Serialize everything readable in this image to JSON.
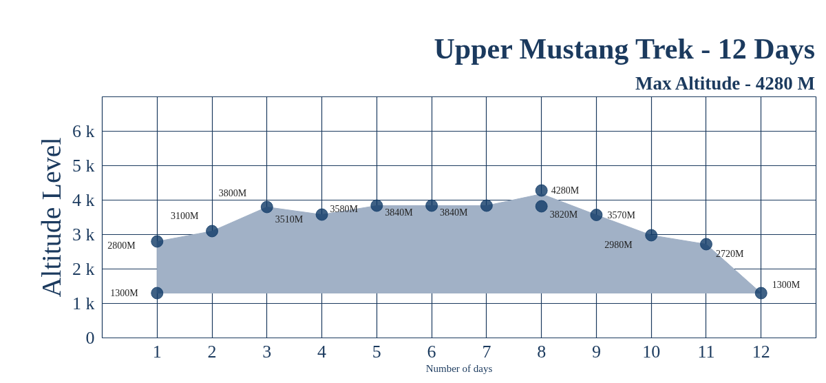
{
  "chart_data": {
    "type": "area",
    "title": "Upper Mustang Trek - 12 Days",
    "subtitle": "Max Altitude - 4280 M",
    "xlabel": "Number of days",
    "ylabel": "Altitude Level",
    "xlim": [
      0,
      13
    ],
    "xticks": [
      {
        "value": 0,
        "label": null
      },
      1,
      2,
      3,
      4,
      5,
      6,
      7,
      8,
      9,
      10,
      11,
      12,
      {
        "value": 13,
        "label": null
      }
    ],
    "ylim": [
      0,
      7000
    ],
    "yticks": [
      {
        "value": 0,
        "label": "0"
      },
      {
        "value": 1000,
        "label": "1 k"
      },
      {
        "value": 2000,
        "label": "2 k"
      },
      {
        "value": 3000,
        "label": "3 k"
      },
      {
        "value": 4000,
        "label": "4 k"
      },
      {
        "value": 5000,
        "label": "5 k"
      },
      {
        "value": 6000,
        "label": "6 k"
      },
      {
        "value": 7000,
        "label": null
      }
    ],
    "grid": true,
    "series": [
      {
        "color": "#a1b1c6",
        "x": [
          1,
          2,
          3,
          4,
          5,
          6,
          7,
          8,
          9,
          10,
          11,
          12
        ],
        "values": [
          2800,
          3100,
          3800,
          3580,
          3840,
          3840,
          3840,
          4180,
          3570,
          2980,
          2720,
          1300
        ]
      },
      {
        "type": "scatter",
        "marker": "circle",
        "color": "#0f3a66",
        "x": [
          1,
          1,
          2,
          3,
          4,
          5,
          6,
          7,
          8,
          8,
          9,
          10,
          11,
          12
        ],
        "values": [
          1300,
          2800,
          3100,
          3800,
          3580,
          3840,
          3840,
          3840,
          4280,
          3820,
          3570,
          2980,
          2720,
          1300
        ],
        "value_labels": [
          "1300M",
          "2800M",
          "3100M",
          "3800M",
          "3580M",
          "3840M",
          "3840M",
          null,
          "4280M",
          "3820M",
          "3570M",
          "2980M",
          "2720M",
          "1300M"
        ]
      }
    ],
    "annotations": [
      "3510M"
    ]
  }
}
